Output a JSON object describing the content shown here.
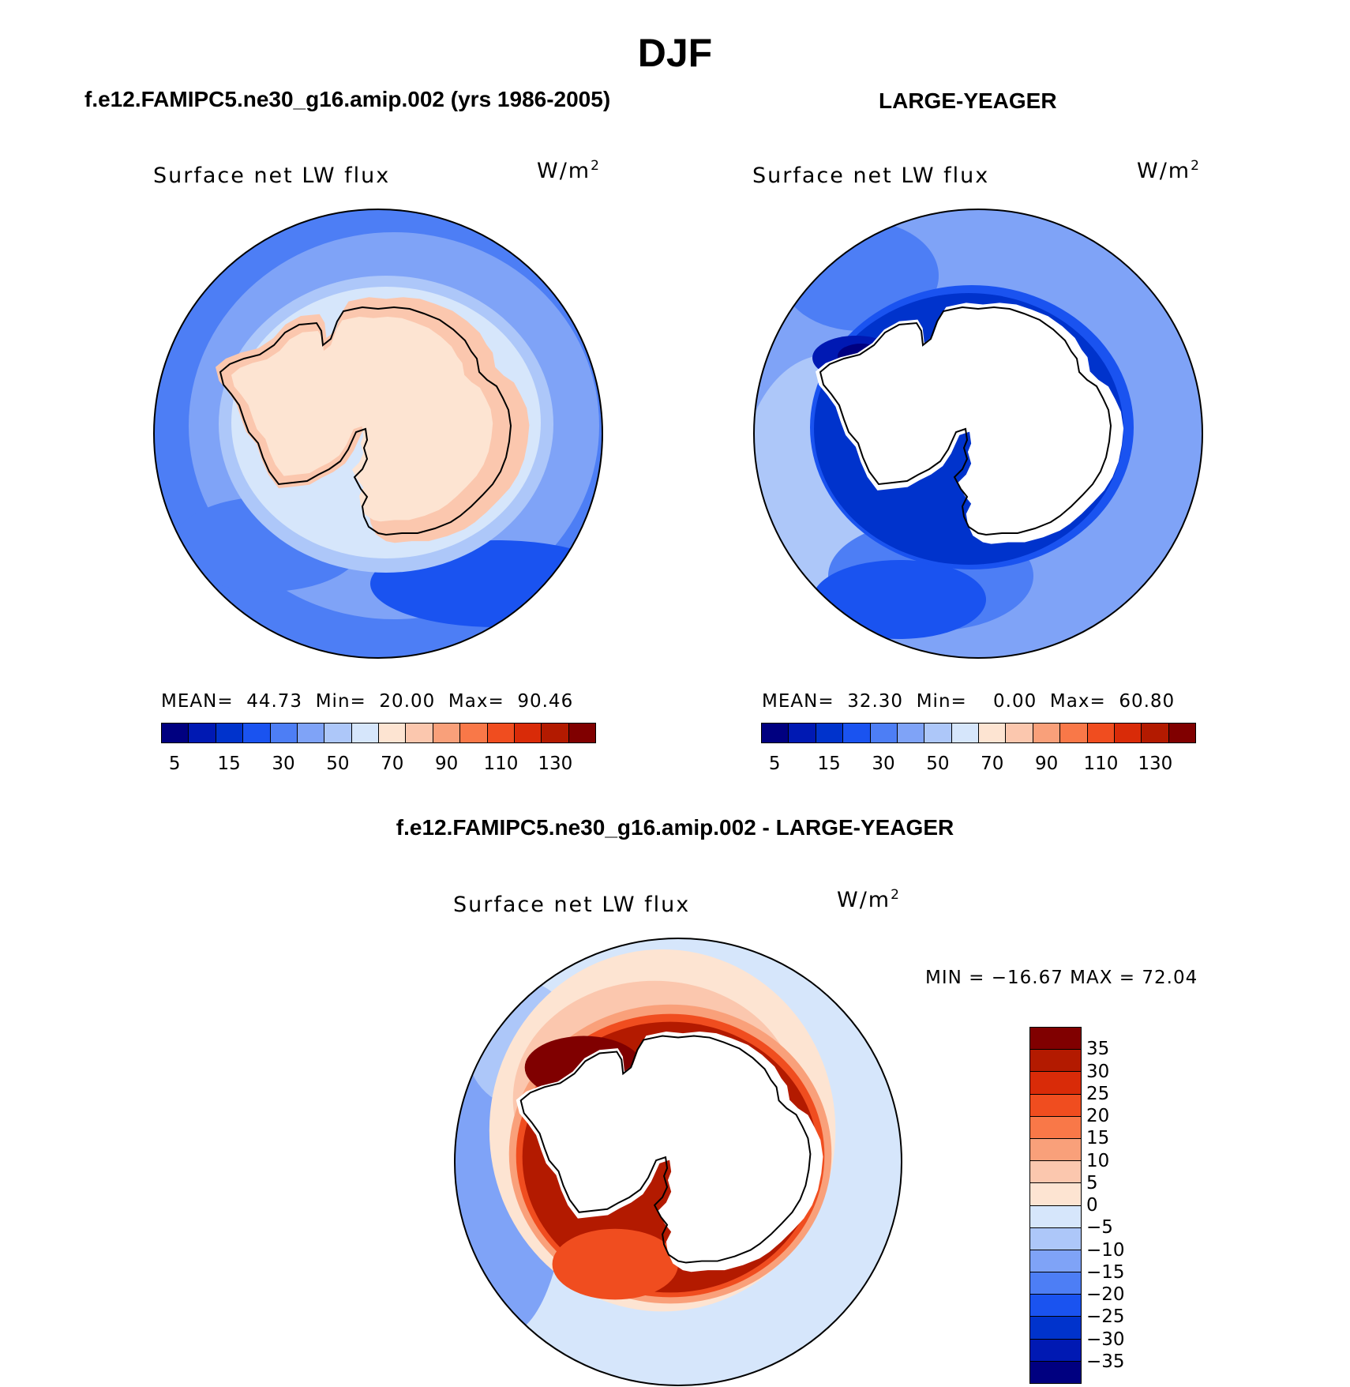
{
  "title": "DJF",
  "panels": [
    {
      "title": "f.e12.FAMIPC5.ne30_g16.amip.002 (yrs 1986-2005)",
      "variable": "Surface net LW flux",
      "units": "W/m",
      "units_sup": "2",
      "stats": {
        "mean_label": "MEAN=",
        "mean": "44.73",
        "min_label": "Min=",
        "min": "20.00",
        "max_label": "Max=",
        "max": "90.46"
      }
    },
    {
      "title": "LARGE-YEAGER",
      "variable": "Surface net LW flux",
      "units": "W/m",
      "units_sup": "2",
      "stats": {
        "mean_label": "MEAN=",
        "mean": "32.30",
        "min_label": "Min=",
        "min": "0.00",
        "max_label": "Max=",
        "max": "60.80"
      }
    },
    {
      "title": "f.e12.FAMIPC5.ne30_g16.amip.002 - LARGE-YEAGER",
      "variable": "Surface net LW flux",
      "units": "W/m",
      "units_sup": "2",
      "minmax": "MIN = −16.67 MAX =  72.04"
    }
  ],
  "colorbar_top": {
    "colors": [
      "#000080",
      "#0019b3",
      "#0033cc",
      "#1a53f0",
      "#4d7ef5",
      "#7fa3f7",
      "#adc7f9",
      "#d6e6fb",
      "#fde4d2",
      "#fbc7ae",
      "#f9a07a",
      "#f97848",
      "#f04d1f",
      "#d92b08",
      "#b31a00",
      "#800000"
    ],
    "ticks": [
      "5",
      "15",
      "30",
      "50",
      "70",
      "90",
      "110",
      "130"
    ]
  },
  "colorbar_diff": {
    "colors": [
      "#800000",
      "#b31a00",
      "#d92b08",
      "#f04d1f",
      "#f97848",
      "#f9a07a",
      "#fbc7ae",
      "#fde4d2",
      "#d6e6fb",
      "#adc7f9",
      "#7fa3f7",
      "#4d7ef5",
      "#1a53f0",
      "#0033cc",
      "#0019b3",
      "#000080"
    ],
    "ticks": [
      "35",
      "30",
      "25",
      "20",
      "15",
      "10",
      "5",
      "0",
      "−5",
      "−10",
      "−15",
      "−20",
      "−25",
      "−30",
      "−35"
    ]
  }
}
